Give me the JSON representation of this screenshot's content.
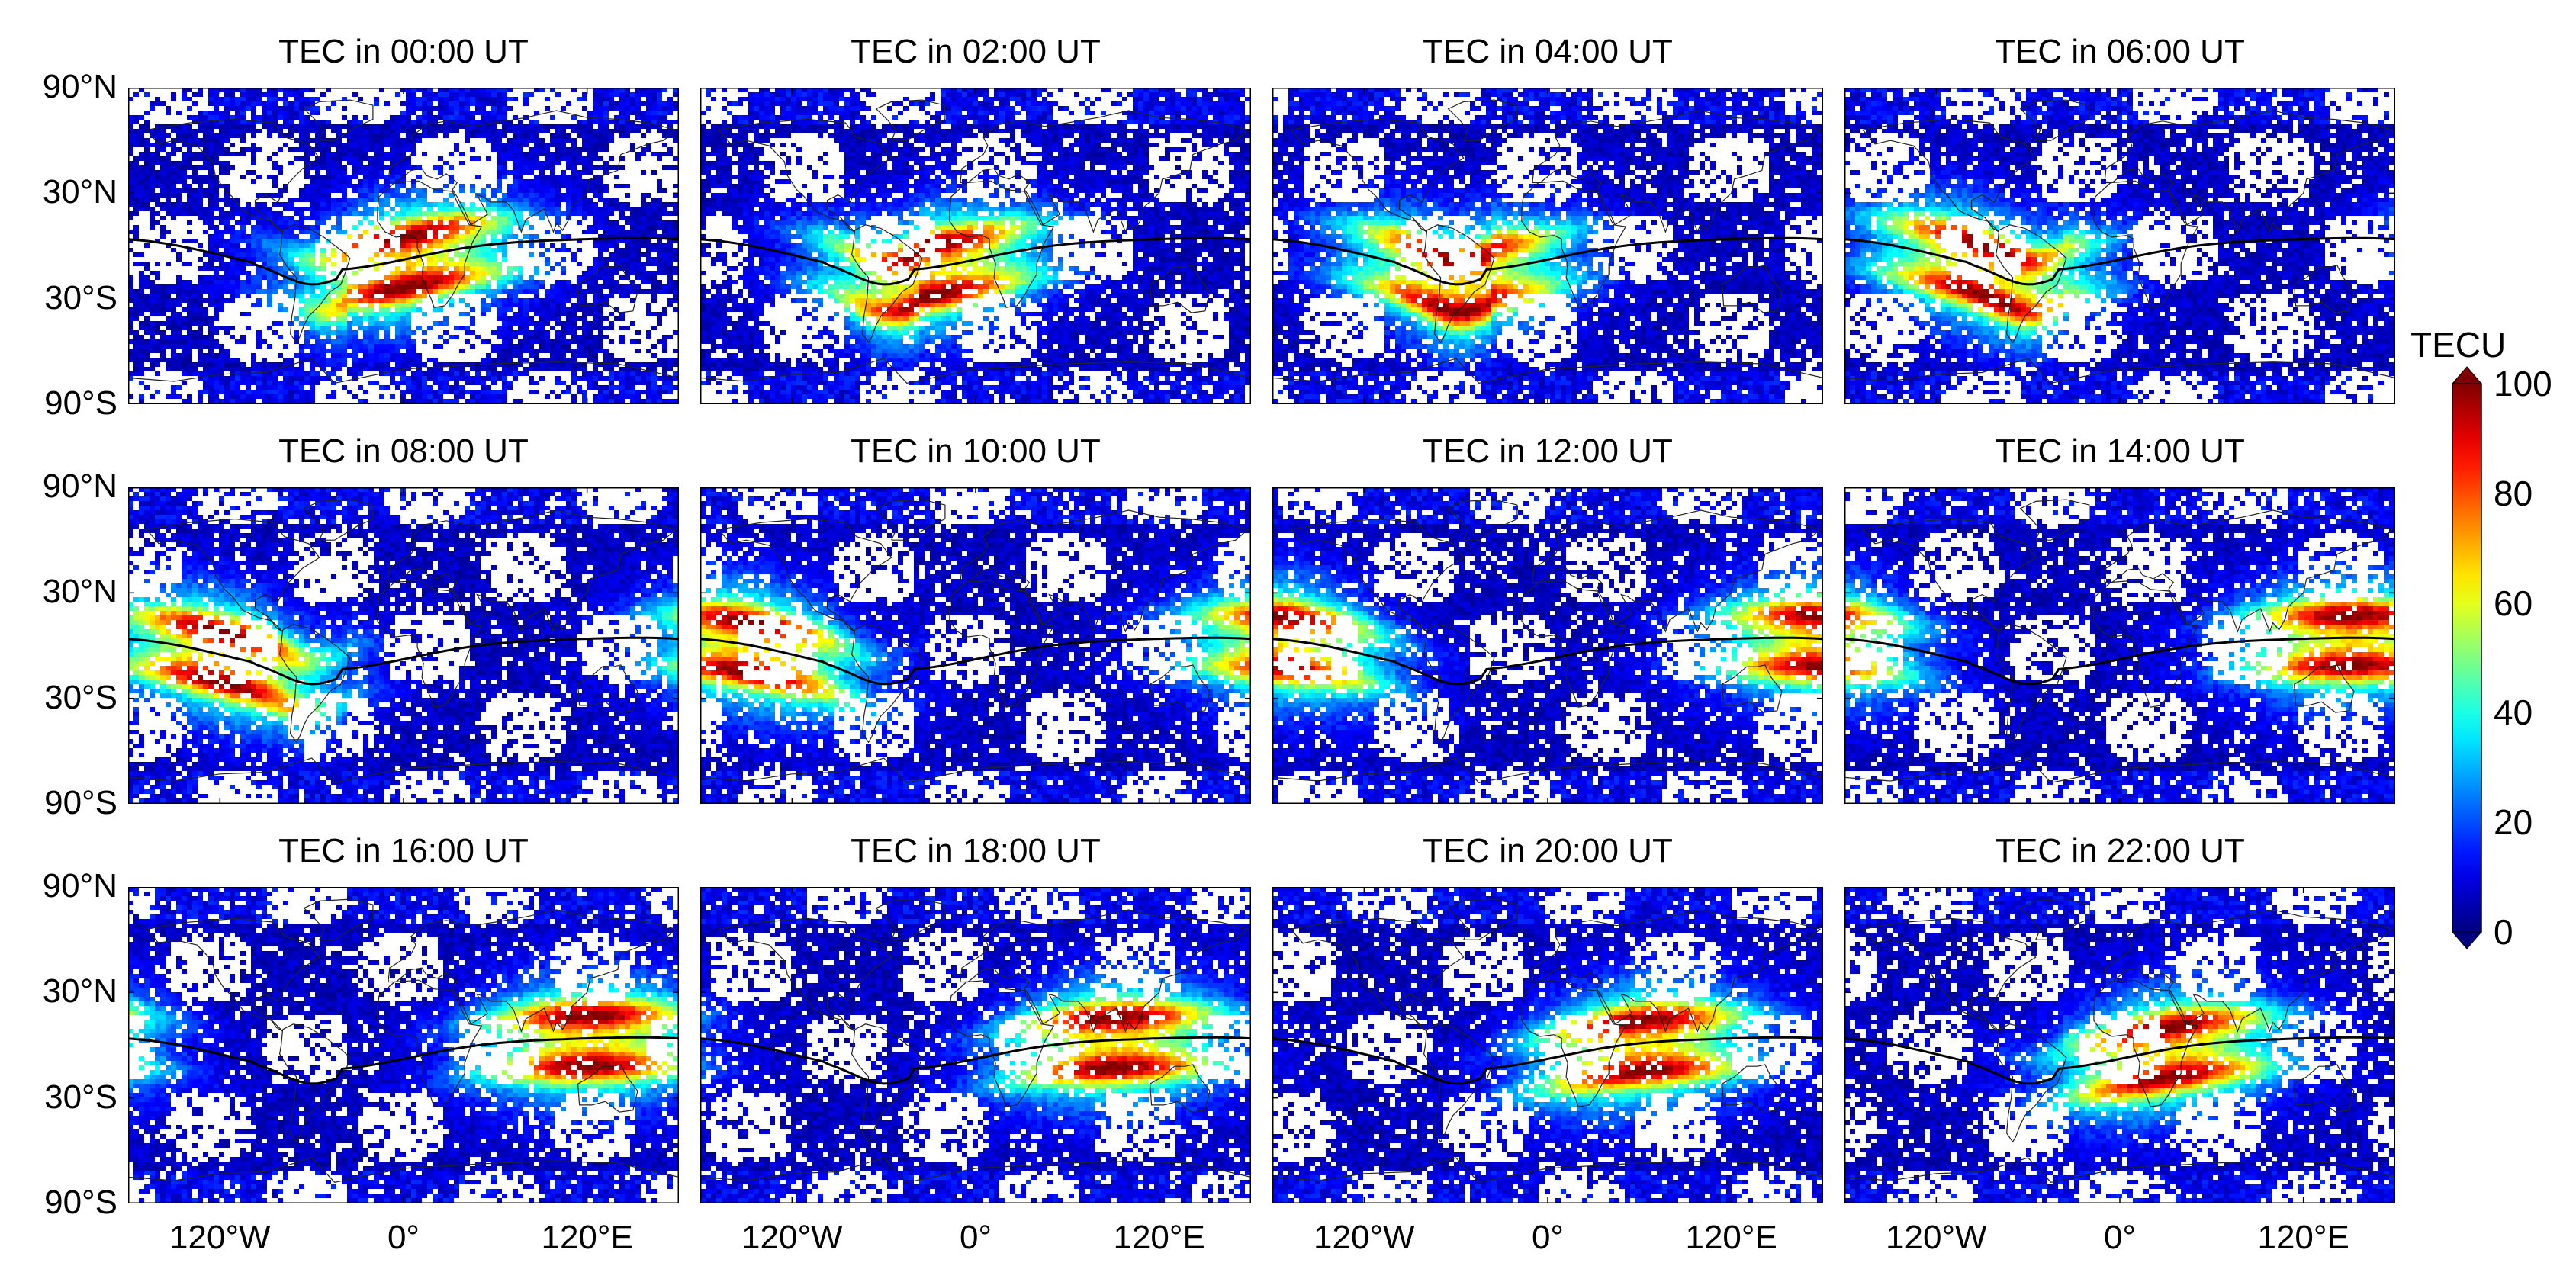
{
  "figure": {
    "panels": [
      {
        "title": "TEC in 00:00 UT",
        "hour": 0
      },
      {
        "title": "TEC in 02:00 UT",
        "hour": 2
      },
      {
        "title": "TEC in 04:00 UT",
        "hour": 4
      },
      {
        "title": "TEC in 06:00 UT",
        "hour": 6
      },
      {
        "title": "TEC in 08:00 UT",
        "hour": 8
      },
      {
        "title": "TEC in 10:00 UT",
        "hour": 10
      },
      {
        "title": "TEC in 12:00 UT",
        "hour": 12
      },
      {
        "title": "TEC in 14:00 UT",
        "hour": 14
      },
      {
        "title": "TEC in 16:00 UT",
        "hour": 16
      },
      {
        "title": "TEC in 18:00 UT",
        "hour": 18
      },
      {
        "title": "TEC in 20:00 UT",
        "hour": 20
      },
      {
        "title": "TEC in 22:00 UT",
        "hour": 22
      }
    ],
    "lat_ticks": [
      "90°N",
      "30°N",
      "30°S",
      "90°S"
    ],
    "lon_ticks": [
      "120°W",
      "0°",
      "120°E"
    ],
    "lon_range": [
      -180,
      180
    ],
    "lat_range": [
      -90,
      90
    ]
  },
  "colorbar": {
    "title": "TECU",
    "ticks": [
      "100",
      "80",
      "60",
      "40",
      "20",
      "0"
    ],
    "range": [
      0,
      100
    ],
    "colormap": "jet",
    "extend": "both"
  },
  "colors": {
    "jet_low": "#00007f",
    "jet_high": "#7f0000",
    "magnetic_equator": "#000000"
  }
}
